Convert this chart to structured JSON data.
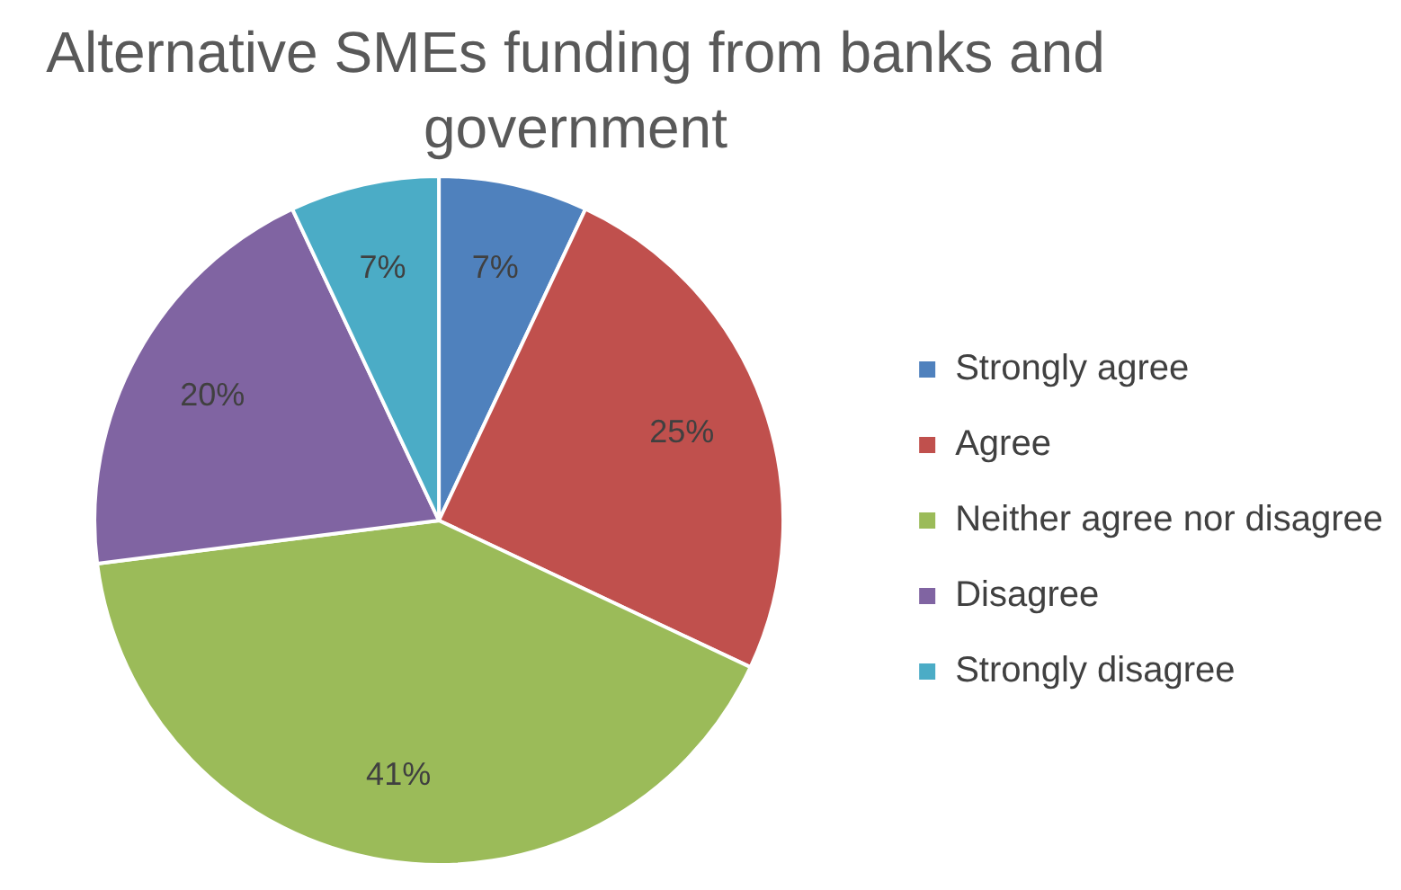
{
  "chart_data": {
    "type": "pie",
    "title": "Alternative SMEs funding from banks and government",
    "categories": [
      "Strongly agree",
      "Agree",
      "Neither agree nor disagree",
      "Disagree",
      "Strongly disagree"
    ],
    "values": [
      7,
      25,
      41,
      20,
      7
    ],
    "colors": [
      "#4f81bd",
      "#c0504d",
      "#9bbb59",
      "#8064a2",
      "#4bacc6"
    ],
    "value_labels": [
      "7%",
      "25%",
      "41%",
      "20%",
      "7%"
    ],
    "legend": "right"
  }
}
